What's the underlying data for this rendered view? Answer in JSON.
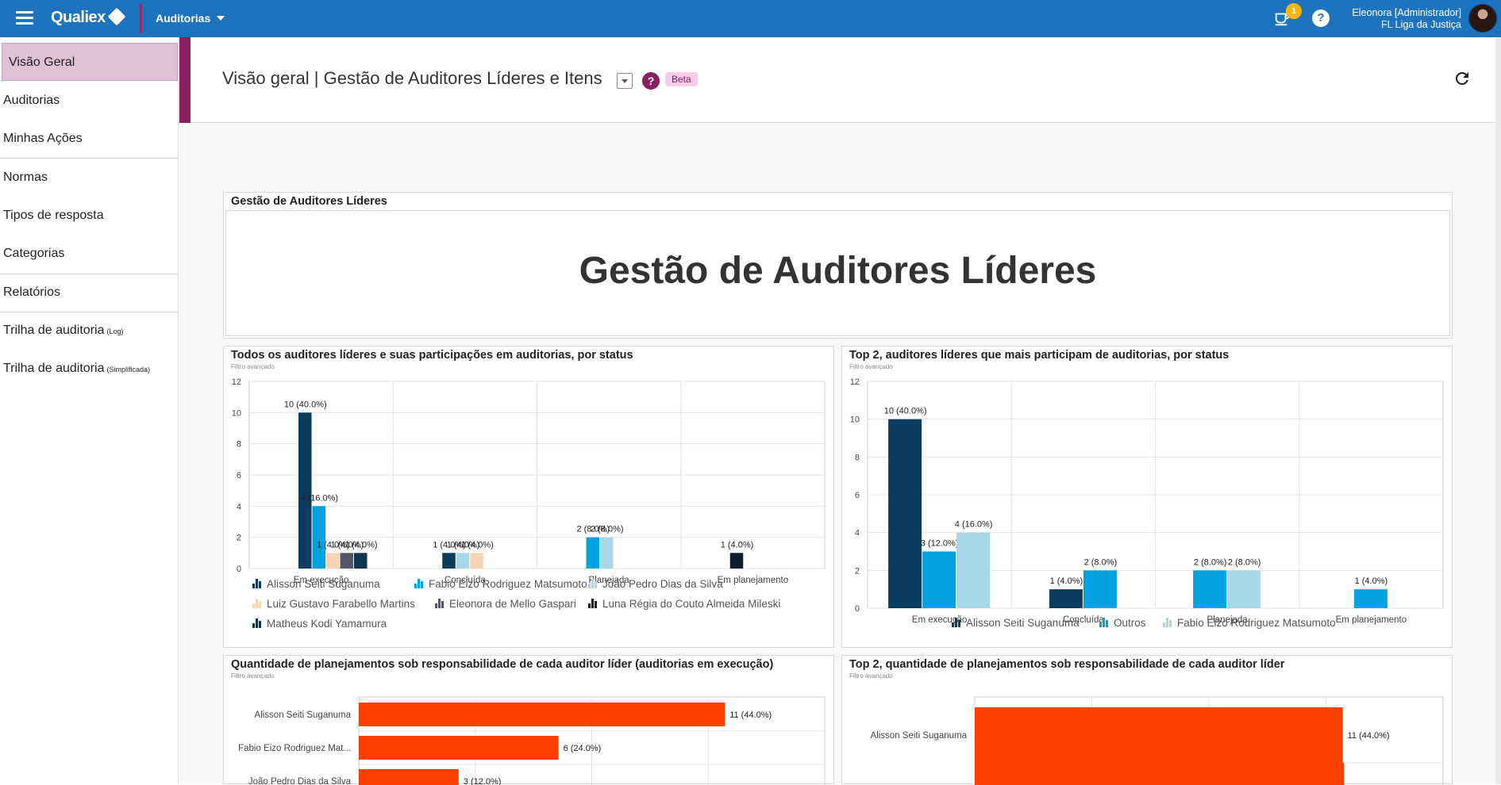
{
  "topbar": {
    "logo": "Qualiex",
    "module": "Auditorias",
    "notif_count": "1",
    "help": "?",
    "user_name": "Eleonora [Administrador]",
    "user_org": "FL Liga da Justiça"
  },
  "sidebar": {
    "items": [
      {
        "label": "Visão Geral",
        "suffix": ""
      },
      {
        "label": "Auditorias",
        "suffix": ""
      },
      {
        "label": "Minhas Ações",
        "suffix": ""
      },
      {
        "label": "Normas",
        "suffix": ""
      },
      {
        "label": "Tipos de resposta",
        "suffix": ""
      },
      {
        "label": "Categorias",
        "suffix": ""
      },
      {
        "label": "Relatórios",
        "suffix": ""
      },
      {
        "label": "Trilha de auditoria",
        "suffix": "(Log)"
      },
      {
        "label": "Trilha de auditoria",
        "suffix": "(Simplificada)"
      }
    ]
  },
  "header": {
    "title": "Visão geral | Gestão de Auditores Líderes e Itens",
    "help": "?",
    "badge": "Beta"
  },
  "panels": {
    "p0": {
      "title": "Gestão de Auditores Líderes",
      "heading": "Gestão de Auditores Líderes"
    },
    "p1": {
      "title": "Todos os auditores líderes e suas participações em auditorias, por status",
      "sub": "Filtro avançado"
    },
    "p2": {
      "title": "Top 2, auditores líderes que mais participam de auditorias, por status",
      "sub": "Filtro avançado"
    },
    "p3": {
      "title": "Quantidade de planejamentos sob responsabilidade de cada auditor líder (auditorias em execução)",
      "sub": "Filtro avançado"
    },
    "p4": {
      "title": "Top 2, quantidade de planejamentos sob responsabilidade de cada auditor líder",
      "sub": "Filtro avançado"
    }
  },
  "chart_data": [
    {
      "type": "bar",
      "categories": [
        "Em execução",
        "Concluída",
        "Planejada",
        "Em planejamento"
      ],
      "ylim": [
        0,
        12
      ],
      "yticks": [
        0,
        2,
        4,
        6,
        8,
        10,
        12
      ],
      "grid": true,
      "legend_position": "bottom",
      "series": [
        {
          "name": "Alisson Seiti Suganuma",
          "color": "#0c3c5e",
          "values": [
            10,
            1,
            null,
            null
          ],
          "labels": [
            "10 (40.0%)",
            "1 (4.0%)",
            "",
            ""
          ]
        },
        {
          "name": "Fabio Eizo Rodriguez Matsumoto",
          "color": "#00a3e0",
          "values": [
            4,
            null,
            2,
            null
          ],
          "labels": [
            "4 (16.0%)",
            "",
            "2 (8.0%)",
            ""
          ]
        },
        {
          "name": "João Pedro Dias da Silva",
          "color": "#a8d8e8",
          "values": [
            null,
            1,
            2,
            null
          ],
          "labels": [
            "",
            "1 (4.0%)",
            "2 (8.0%)",
            ""
          ]
        },
        {
          "name": "Luiz Gustavo Farabello Martins",
          "color": "#f5d3b3",
          "values": [
            1,
            1,
            null,
            null
          ],
          "labels": [
            "1 (4.0%)",
            "1 (4.0%)",
            "",
            ""
          ]
        },
        {
          "name": "Eleonora de Mello Gaspari",
          "color": "#555566",
          "values": [
            1,
            null,
            null,
            null
          ],
          "labels": [
            "1 (4.0%)",
            "",
            "",
            ""
          ]
        },
        {
          "name": "Luna Régia do Couto Almeida Mileski",
          "color": "#0b1c2c",
          "values": [
            null,
            null,
            null,
            1
          ],
          "labels": [
            "",
            "",
            "",
            "1 (4.0%)"
          ]
        },
        {
          "name": "Matheus Kodi Yamamura",
          "color": "#0e3552",
          "values": [
            1,
            null,
            null,
            null
          ],
          "labels": [
            "1 (4.0%)",
            "",
            "",
            ""
          ]
        }
      ]
    },
    {
      "type": "bar",
      "categories": [
        "Em execução",
        "Concluída",
        "Planejada",
        "Em planejamento"
      ],
      "ylim": [
        0,
        12
      ],
      "yticks": [
        0,
        2,
        4,
        6,
        8,
        10,
        12
      ],
      "grid": true,
      "legend_position": "bottom",
      "series": [
        {
          "name": "Alisson Seiti Suganuma",
          "color": "#0c3c5e",
          "values": [
            10,
            1,
            null,
            null
          ],
          "labels": [
            "10 (40.0%)",
            "1 (4.0%)",
            "",
            ""
          ]
        },
        {
          "name": "Outros",
          "color": "#00a3e0",
          "values": [
            3,
            2,
            2,
            1
          ],
          "labels": [
            "3 (12.0%)",
            "2 (8.0%)",
            "2 (8.0%)",
            "1 (4.0%)"
          ]
        },
        {
          "name": "Fabio Eizo Rodriguez Matsumoto",
          "color": "#a8d8e8",
          "values": [
            4,
            null,
            2,
            null
          ],
          "labels": [
            "4 (16.0%)",
            "",
            "2 (8.0%)",
            ""
          ]
        }
      ]
    },
    {
      "type": "bar",
      "orientation": "horizontal",
      "categories": [
        "Alisson Seiti Suganuma",
        "Fabio Eizo Rodriguez Mat...",
        "João Pedro Dias da Silva"
      ],
      "values": [
        11,
        6,
        3
      ],
      "labels": [
        "11 (44.0%)",
        "6 (24.0%)",
        "3 (12.0%)"
      ],
      "color": "#ff4000",
      "xlim": [
        0,
        14
      ]
    },
    {
      "type": "bar",
      "orientation": "horizontal",
      "categories": [
        "Alisson Seiti Suganuma"
      ],
      "values": [
        11
      ],
      "labels": [
        "11 (44.0%)"
      ],
      "color": "#ff4000",
      "xlim": [
        0,
        14
      ]
    }
  ]
}
